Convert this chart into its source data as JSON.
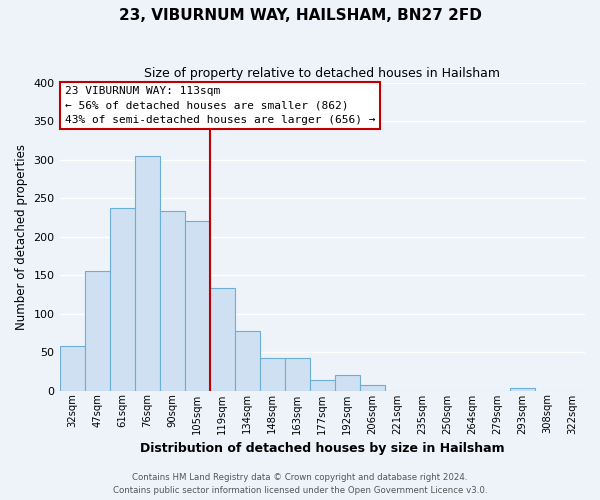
{
  "title": "23, VIBURNUM WAY, HAILSHAM, BN27 2FD",
  "subtitle": "Size of property relative to detached houses in Hailsham",
  "xlabel": "Distribution of detached houses by size in Hailsham",
  "ylabel": "Number of detached properties",
  "bar_labels": [
    "32sqm",
    "47sqm",
    "61sqm",
    "76sqm",
    "90sqm",
    "105sqm",
    "119sqm",
    "134sqm",
    "148sqm",
    "163sqm",
    "177sqm",
    "192sqm",
    "206sqm",
    "221sqm",
    "235sqm",
    "250sqm",
    "264sqm",
    "279sqm",
    "293sqm",
    "308sqm",
    "322sqm"
  ],
  "bar_values": [
    58,
    155,
    238,
    305,
    233,
    220,
    134,
    78,
    42,
    42,
    14,
    20,
    7,
    0,
    0,
    0,
    0,
    0,
    3,
    0,
    0
  ],
  "bar_color": "#cfe0f3",
  "bar_edge_color": "#6baed6",
  "ylim": [
    0,
    400
  ],
  "yticks": [
    0,
    50,
    100,
    150,
    200,
    250,
    300,
    350,
    400
  ],
  "property_line_x": 5.5,
  "property_line_color": "#c00000",
  "annotation_title": "23 VIBURNUM WAY: 113sqm",
  "annotation_line1": "← 56% of detached houses are smaller (862)",
  "annotation_line2": "43% of semi-detached houses are larger (656) →",
  "annotation_box_color": "#ffffff",
  "annotation_box_edge": "#c00000",
  "footer_line1": "Contains HM Land Registry data © Crown copyright and database right 2024.",
  "footer_line2": "Contains public sector information licensed under the Open Government Licence v3.0.",
  "background_color": "#eef2f9",
  "grid_color": "#ffffff"
}
